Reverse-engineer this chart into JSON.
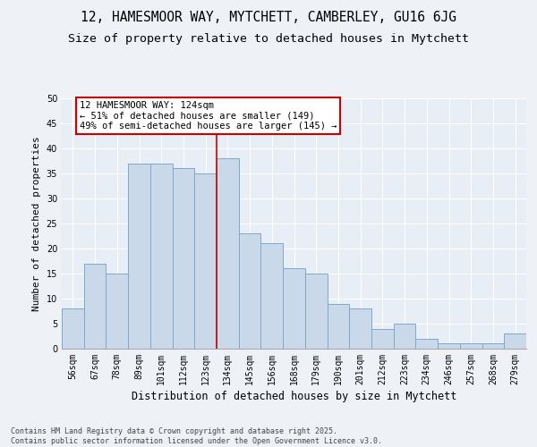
{
  "title1": "12, HAMESMOOR WAY, MYTCHETT, CAMBERLEY, GU16 6JG",
  "title2": "Size of property relative to detached houses in Mytchett",
  "xlabel": "Distribution of detached houses by size in Mytchett",
  "ylabel": "Number of detached properties",
  "categories": [
    "56sqm",
    "67sqm",
    "78sqm",
    "89sqm",
    "101sqm",
    "112sqm",
    "123sqm",
    "134sqm",
    "145sqm",
    "156sqm",
    "168sqm",
    "179sqm",
    "190sqm",
    "201sqm",
    "212sqm",
    "223sqm",
    "234sqm",
    "246sqm",
    "257sqm",
    "268sqm",
    "279sqm"
  ],
  "values": [
    8,
    17,
    15,
    37,
    37,
    36,
    35,
    38,
    23,
    21,
    16,
    15,
    9,
    8,
    4,
    5,
    2,
    1,
    1,
    1,
    3
  ],
  "bar_color": "#c9d9ea",
  "bar_edge_color": "#7fa8cc",
  "background_color": "#e8eef5",
  "fig_background_color": "#eef2f7",
  "grid_color": "#ffffff",
  "vline_color": "#cc0000",
  "annotation_box_text": "12 HAMESMOOR WAY: 124sqm\n← 51% of detached houses are smaller (149)\n49% of semi-detached houses are larger (145) →",
  "annotation_box_edge_color": "#cc0000",
  "annotation_box_facecolor": "#ffffff",
  "ylim": [
    0,
    50
  ],
  "yticks": [
    0,
    5,
    10,
    15,
    20,
    25,
    30,
    35,
    40,
    45,
    50
  ],
  "footnote": "Contains HM Land Registry data © Crown copyright and database right 2025.\nContains public sector information licensed under the Open Government Licence v3.0.",
  "title_fontsize": 10.5,
  "subtitle_fontsize": 9.5,
  "tick_fontsize": 7,
  "label_fontsize": 8.5,
  "annot_fontsize": 7.5,
  "footnote_fontsize": 6
}
